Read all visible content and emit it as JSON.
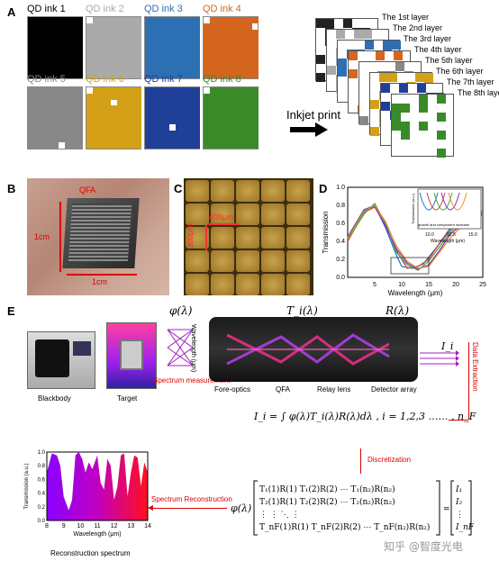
{
  "panels": {
    "A": "A",
    "B": "B",
    "C": "C",
    "D": "D",
    "E": "E"
  },
  "inks": [
    {
      "label": "QD ink 1",
      "color": "#000000",
      "text_color": "#000000"
    },
    {
      "label": "QD ink 2",
      "color": "#aaaaaa",
      "text_color": "#aaaaaa"
    },
    {
      "label": "QD ink 3",
      "color": "#2d6fb3",
      "text_color": "#2d6fb3"
    },
    {
      "label": "QD ink 4",
      "color": "#d4661f",
      "text_color": "#d4661f"
    },
    {
      "label": "QD ink 5",
      "color": "#888888",
      "text_color": "#888888"
    },
    {
      "label": "QD ink 6",
      "color": "#d4a017",
      "text_color": "#d4a017"
    },
    {
      "label": "QD ink 7",
      "color": "#1f3f99",
      "text_color": "#1f3f99"
    },
    {
      "label": "QD ink 8",
      "color": "#3a8a2a",
      "text_color": "#3a8a2a"
    }
  ],
  "layers": [
    "The 1st layer",
    "The 2nd layer",
    "The 3rd layer",
    "The 4th layer",
    "The 5th layer",
    "The 6th layer",
    "The 7th layer",
    "The 8th layer"
  ],
  "inkjet_label": "Inkjet print",
  "panelB": {
    "qfa": "QFA",
    "size1": "1cm",
    "size2": "1cm"
  },
  "panelC": {
    "w": "408μm",
    "h": "300μm"
  },
  "panelD": {
    "ylabel": "Transmission",
    "xlabel": "Wavelength (μm)",
    "xticks": [
      "5",
      "10",
      "15",
      "20",
      "25"
    ],
    "yticks": [
      "0.0",
      "0.2",
      "0.4",
      "0.6",
      "0.8",
      "1.0"
    ],
    "inset_xlabel": "Wavelength (μm)",
    "inset_ylabel": "Transmission (a.u.)",
    "inset_xticks": [
      "10.0",
      "12.5",
      "15.0"
    ],
    "inset_note": "growth and component increase"
  },
  "panelE": {
    "blackbody": "Blackbody",
    "target": "Target",
    "spectrum_measurement": "Spectrum measurement",
    "phi": "φ(λ)",
    "T": "T_i(λ)",
    "R": "R(λ)",
    "I": "I_i",
    "fore_optics": "Fore-optics",
    "qfa": "QFA",
    "relay_lens": "Relay lens",
    "detector_array": "Detector array",
    "data_extraction": "Data Extraction",
    "discretization": "Discretization",
    "spectrum_reconstruction": "Spectrum Reconstruction",
    "equation": "I_i = ∫ φ(λ)T_i(λ)R(λ)dλ ,  i = 1,2,3 …… ,  n_F",
    "recon_ylabel": "Transmission (a.u.)",
    "recon_xlabel": "Wavelength (μm)",
    "recon_title": "Reconstruction spectrum",
    "recon_xticks": [
      "8",
      "9",
      "10",
      "11",
      "12",
      "13",
      "14"
    ],
    "recon_yticks": [
      "0.0",
      "0.2",
      "0.4",
      "0.6",
      "0.8",
      "1.0"
    ],
    "watermark": "知乎 @智度光电",
    "wave_axis": "Wavelength (μm)"
  },
  "chart_data": [
    {
      "type": "line",
      "xlabel": "Wavelength (μm)",
      "ylabel": "Transmission",
      "xlim": [
        0,
        25
      ],
      "ylim": [
        0,
        1.0
      ],
      "series": [
        {
          "color": "#1f6fd0",
          "x": [
            0,
            3,
            5,
            7,
            9,
            10,
            12,
            14,
            16,
            18,
            20,
            22,
            25
          ],
          "y": [
            0.45,
            0.75,
            0.8,
            0.55,
            0.25,
            0.12,
            0.1,
            0.15,
            0.3,
            0.45,
            0.6,
            0.65,
            0.7
          ]
        },
        {
          "color": "#d23b3b",
          "x": [
            0,
            3,
            5,
            7,
            9,
            11,
            13,
            15,
            17,
            19,
            21,
            23,
            25
          ],
          "y": [
            0.4,
            0.72,
            0.78,
            0.58,
            0.3,
            0.1,
            0.12,
            0.2,
            0.38,
            0.55,
            0.65,
            0.7,
            0.72
          ]
        },
        {
          "color": "#3aaa3a",
          "x": [
            0,
            3,
            5,
            7,
            9,
            11,
            13,
            15,
            17,
            19,
            21,
            23,
            25
          ],
          "y": [
            0.42,
            0.7,
            0.82,
            0.6,
            0.28,
            0.14,
            0.08,
            0.18,
            0.34,
            0.5,
            0.62,
            0.68,
            0.74
          ]
        },
        {
          "color": "#8a2ac0",
          "x": [
            0,
            3,
            5,
            7,
            9,
            11,
            13,
            15,
            17,
            19,
            21,
            23,
            25
          ],
          "y": [
            0.44,
            0.74,
            0.79,
            0.57,
            0.32,
            0.16,
            0.09,
            0.14,
            0.3,
            0.48,
            0.58,
            0.66,
            0.7
          ]
        },
        {
          "color": "#e89020",
          "x": [
            0,
            3,
            5,
            7,
            9,
            11,
            13,
            15,
            17,
            19,
            21,
            23,
            25
          ],
          "y": [
            0.43,
            0.73,
            0.8,
            0.62,
            0.35,
            0.18,
            0.1,
            0.12,
            0.28,
            0.44,
            0.56,
            0.64,
            0.69
          ]
        }
      ]
    },
    {
      "type": "area",
      "xlabel": "Wavelength (μm)",
      "ylabel": "Transmission (a.u.)",
      "title": "Reconstruction spectrum",
      "xlim": [
        8,
        14
      ],
      "ylim": [
        0,
        1.0
      ],
      "x": [
        8,
        8.3,
        8.6,
        8.8,
        9.0,
        9.3,
        9.5,
        9.7,
        9.9,
        10.1,
        10.3,
        10.5,
        10.7,
        11.0,
        11.2,
        11.4,
        11.6,
        11.8,
        12.0,
        12.2,
        12.4,
        12.6,
        12.8,
        13.0,
        13.2,
        13.4,
        13.6,
        13.8,
        14
      ],
      "y": [
        0.7,
        0.98,
        0.95,
        0.8,
        0.35,
        0.15,
        0.3,
        0.95,
        1.0,
        0.9,
        0.7,
        0.85,
        0.75,
        0.95,
        0.55,
        0.45,
        0.9,
        0.8,
        0.3,
        0.5,
        0.95,
        0.98,
        0.35,
        0.7,
        0.95,
        0.92,
        0.5,
        0.85,
        0.7
      ]
    }
  ]
}
